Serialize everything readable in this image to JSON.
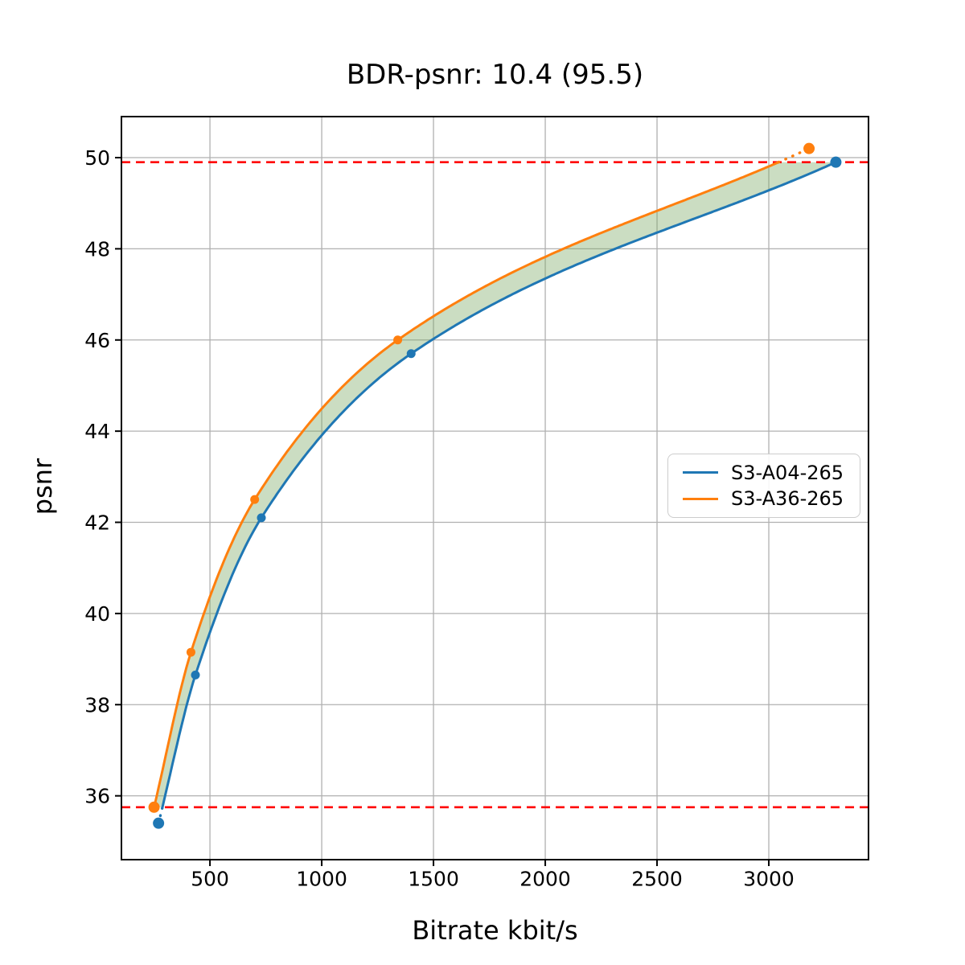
{
  "title": "BDR-psnr: 10.4 (95.5)",
  "axes": {
    "xlabel": "Bitrate kbit/s",
    "ylabel": "psnr"
  },
  "legend": {
    "items": [
      {
        "label": "S3-A04-265",
        "color": "#1f77b4"
      },
      {
        "label": "S3-A36-265",
        "color": "#ff7f0e"
      }
    ]
  },
  "chart_data": {
    "type": "line",
    "title": "BDR-psnr: 10.4 (95.5)",
    "xlabel": "Bitrate kbit/s",
    "ylabel": "psnr",
    "xlim": [
      104,
      3446
    ],
    "ylim": [
      34.6,
      50.9
    ],
    "x_ticks": [
      500,
      1000,
      1500,
      2000,
      2500,
      3000
    ],
    "y_ticks": [
      36,
      38,
      40,
      42,
      44,
      46,
      48,
      50
    ],
    "grid": true,
    "grid_color": "#b0b0b0",
    "legend_position": "center right",
    "series": [
      {
        "name": "S3-A04-265",
        "color": "#1f77b4",
        "x": [
          270,
          435,
          730,
          1400,
          3300
        ],
        "y": [
          35.4,
          38.65,
          42.1,
          45.7,
          49.9
        ]
      },
      {
        "name": "S3-A36-265",
        "color": "#ff7f0e",
        "x": [
          250,
          415,
          700,
          1340,
          3180
        ],
        "y": [
          35.75,
          39.15,
          42.5,
          46.0,
          50.2
        ]
      }
    ],
    "reference_lines": {
      "color": "#ff0000",
      "style": "dashed",
      "y_values": [
        49.9,
        35.75
      ]
    },
    "fill_between": {
      "color": "#7cab66",
      "opacity": 0.4,
      "y_range": [
        35.75,
        49.9
      ]
    }
  }
}
